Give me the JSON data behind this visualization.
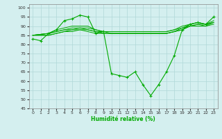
{
  "xlabel": "Humidité relative (%)",
  "bg_color": "#d4efef",
  "grid_color": "#b0d8d8",
  "line_color": "#00aa00",
  "xlim": [
    -0.5,
    23.5
  ],
  "ylim": [
    45,
    102
  ],
  "yticks": [
    45,
    50,
    55,
    60,
    65,
    70,
    75,
    80,
    85,
    90,
    95,
    100
  ],
  "xticks": [
    0,
    1,
    2,
    3,
    4,
    5,
    6,
    7,
    8,
    9,
    10,
    11,
    12,
    13,
    14,
    15,
    16,
    17,
    18,
    19,
    20,
    21,
    22,
    23
  ],
  "series": [
    {
      "x": [
        0,
        1,
        2,
        3,
        4,
        5,
        6,
        7,
        8,
        9,
        10,
        11,
        12,
        13,
        14,
        15,
        16,
        17,
        18,
        19,
        20,
        21,
        22,
        23
      ],
      "y": [
        83,
        82,
        86,
        88,
        93,
        94,
        96,
        95,
        86,
        87,
        64,
        63,
        62,
        65,
        58,
        52,
        58,
        65,
        74,
        88,
        91,
        92,
        91,
        95
      ],
      "marker": "+"
    },
    {
      "x": [
        0,
        2,
        3,
        4,
        5,
        6,
        7,
        8,
        9,
        10,
        11,
        12,
        13,
        14,
        15,
        16,
        17,
        18,
        19,
        20,
        21,
        22,
        23
      ],
      "y": [
        85,
        86,
        88,
        89,
        90,
        90,
        90,
        88,
        87,
        87,
        87,
        87,
        87,
        87,
        87,
        87,
        87,
        88,
        90,
        91,
        92,
        91,
        93
      ],
      "marker": null
    },
    {
      "x": [
        0,
        2,
        3,
        4,
        5,
        6,
        7,
        8,
        9,
        10,
        11,
        12,
        13,
        14,
        15,
        16,
        17,
        18,
        19,
        20,
        21,
        22,
        23
      ],
      "y": [
        85,
        86,
        87,
        88,
        89,
        89,
        89,
        88,
        87,
        87,
        87,
        87,
        87,
        87,
        87,
        87,
        87,
        88,
        89,
        91,
        92,
        91,
        92
      ],
      "marker": null
    },
    {
      "x": [
        0,
        2,
        3,
        4,
        5,
        6,
        7,
        8,
        9,
        10,
        11,
        12,
        13,
        14,
        15,
        16,
        17,
        18,
        19,
        20,
        21,
        22,
        23
      ],
      "y": [
        85,
        86,
        87,
        88,
        88,
        89,
        88,
        87,
        87,
        86,
        86,
        86,
        86,
        86,
        86,
        86,
        86,
        87,
        89,
        90,
        91,
        91,
        92
      ],
      "marker": null
    },
    {
      "x": [
        0,
        2,
        3,
        4,
        5,
        6,
        7,
        8,
        9,
        10,
        11,
        12,
        13,
        14,
        15,
        16,
        17,
        18,
        19,
        20,
        21,
        22,
        23
      ],
      "y": [
        85,
        85,
        86,
        87,
        88,
        88,
        88,
        87,
        86,
        86,
        86,
        86,
        86,
        86,
        86,
        86,
        86,
        87,
        88,
        90,
        91,
        90,
        92
      ],
      "marker": null
    },
    {
      "x": [
        0,
        2,
        3,
        4,
        5,
        6,
        7,
        8,
        9,
        10,
        11,
        12,
        13,
        14,
        15,
        16,
        17,
        18,
        19,
        20,
        21,
        22,
        23
      ],
      "y": [
        85,
        85,
        86,
        87,
        87,
        88,
        87,
        86,
        86,
        86,
        86,
        86,
        86,
        86,
        86,
        86,
        86,
        87,
        88,
        90,
        90,
        90,
        91
      ],
      "marker": null
    }
  ]
}
